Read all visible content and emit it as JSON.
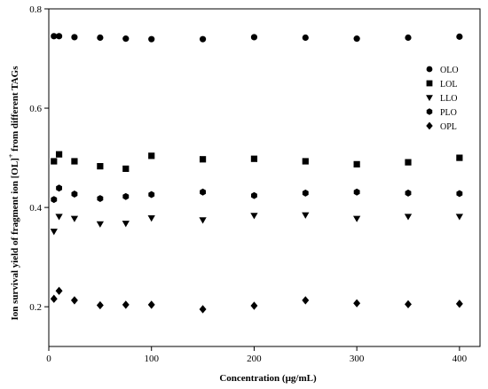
{
  "chart_data": {
    "type": "scatter",
    "xlabel": "Concentration (µg/mL)",
    "ylabel_main": "Ion survival yield of fragment ion [OL]",
    "ylabel_sup": "+",
    "ylabel_tail": " from different TAGs",
    "xlim": [
      0,
      420
    ],
    "ylim": [
      0.12,
      0.8
    ],
    "x_ticks": [
      0,
      100,
      200,
      300,
      400
    ],
    "y_ticks": [
      0.2,
      0.4,
      0.6,
      0.8
    ],
    "y_tick_labels": [
      "0.2",
      "0.4",
      "0.6",
      "0.8"
    ],
    "grid": false,
    "legend_position": "right",
    "series": [
      {
        "name": "OLO",
        "marker": "circle",
        "points": [
          [
            5,
            0.745
          ],
          [
            10,
            0.745
          ],
          [
            25,
            0.743
          ],
          [
            50,
            0.742
          ],
          [
            75,
            0.74
          ],
          [
            100,
            0.739
          ],
          [
            150,
            0.739
          ],
          [
            200,
            0.743
          ],
          [
            250,
            0.742
          ],
          [
            300,
            0.74
          ],
          [
            350,
            0.742
          ],
          [
            400,
            0.744
          ]
        ]
      },
      {
        "name": "LOL",
        "marker": "square",
        "points": [
          [
            5,
            0.493
          ],
          [
            10,
            0.507
          ],
          [
            25,
            0.493
          ],
          [
            50,
            0.483
          ],
          [
            75,
            0.478
          ],
          [
            100,
            0.504
          ],
          [
            150,
            0.497
          ],
          [
            200,
            0.498
          ],
          [
            250,
            0.493
          ],
          [
            300,
            0.487
          ],
          [
            350,
            0.491
          ],
          [
            400,
            0.5
          ]
        ]
      },
      {
        "name": "LLO",
        "marker": "triangle-down",
        "points": [
          [
            5,
            0.352
          ],
          [
            10,
            0.382
          ],
          [
            25,
            0.378
          ],
          [
            50,
            0.367
          ],
          [
            75,
            0.368
          ],
          [
            100,
            0.379
          ],
          [
            150,
            0.375
          ],
          [
            200,
            0.384
          ],
          [
            250,
            0.385
          ],
          [
            300,
            0.378
          ],
          [
            350,
            0.382
          ],
          [
            400,
            0.382
          ]
        ]
      },
      {
        "name": "PLO",
        "marker": "hexagon",
        "points": [
          [
            5,
            0.416
          ],
          [
            10,
            0.439
          ],
          [
            25,
            0.427
          ],
          [
            50,
            0.418
          ],
          [
            75,
            0.422
          ],
          [
            100,
            0.426
          ],
          [
            150,
            0.431
          ],
          [
            200,
            0.424
          ],
          [
            250,
            0.429
          ],
          [
            300,
            0.431
          ],
          [
            350,
            0.429
          ],
          [
            400,
            0.428
          ]
        ]
      },
      {
        "name": "OPL",
        "marker": "diamond",
        "points": [
          [
            5,
            0.216
          ],
          [
            10,
            0.232
          ],
          [
            25,
            0.213
          ],
          [
            50,
            0.203
          ],
          [
            75,
            0.204
          ],
          [
            100,
            0.204
          ],
          [
            150,
            0.195
          ],
          [
            200,
            0.202
          ],
          [
            250,
            0.213
          ],
          [
            300,
            0.207
          ],
          [
            350,
            0.205
          ],
          [
            400,
            0.206
          ]
        ]
      }
    ]
  }
}
